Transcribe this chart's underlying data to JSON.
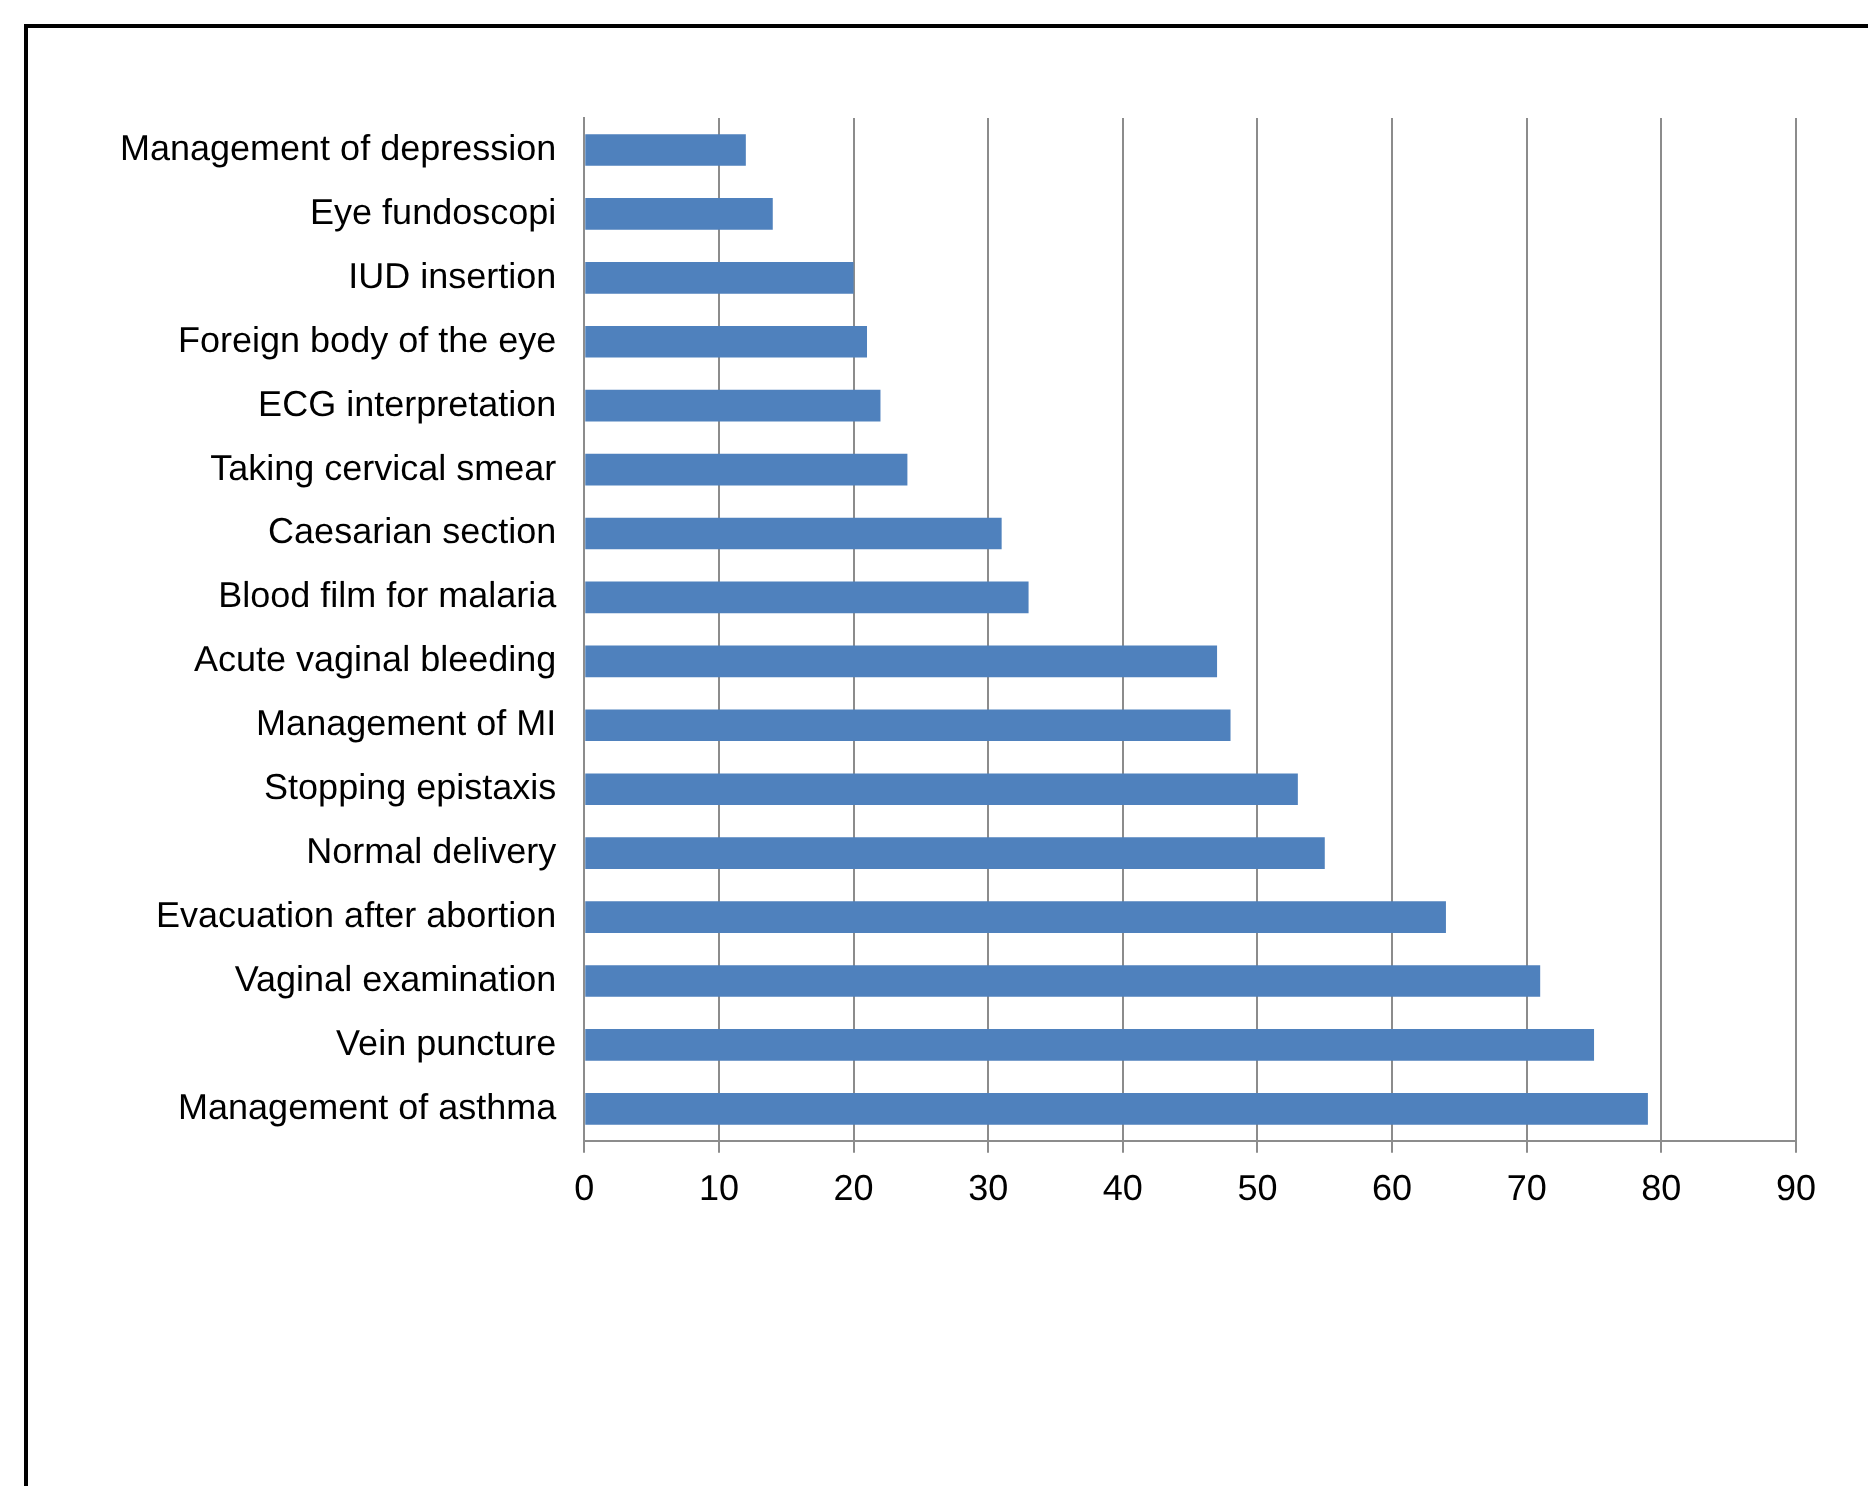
{
  "chart_data": {
    "type": "bar",
    "orientation": "horizontal",
    "categories": [
      "Management of depression",
      "Eye fundoscopi",
      "IUD insertion",
      "Foreign body of the eye",
      "ECG interpretation",
      "Taking cervical smear",
      "Caesarian section",
      "Blood film for malaria",
      "Acute vaginal bleeding",
      "Management of MI",
      "Stopping epistaxis",
      "Normal delivery",
      "Evacuation after abortion",
      "Vaginal examination",
      "Vein puncture",
      "Management of asthma"
    ],
    "values": [
      12,
      14,
      20,
      21,
      22,
      24,
      31,
      33,
      47,
      48,
      53,
      55,
      64,
      71,
      75,
      79
    ],
    "color": "#4f81bd",
    "xlim": [
      0,
      90
    ],
    "xticks": [
      0,
      10,
      20,
      30,
      40,
      50,
      60,
      70,
      80,
      90
    ],
    "grid": "x",
    "legend": false
  }
}
